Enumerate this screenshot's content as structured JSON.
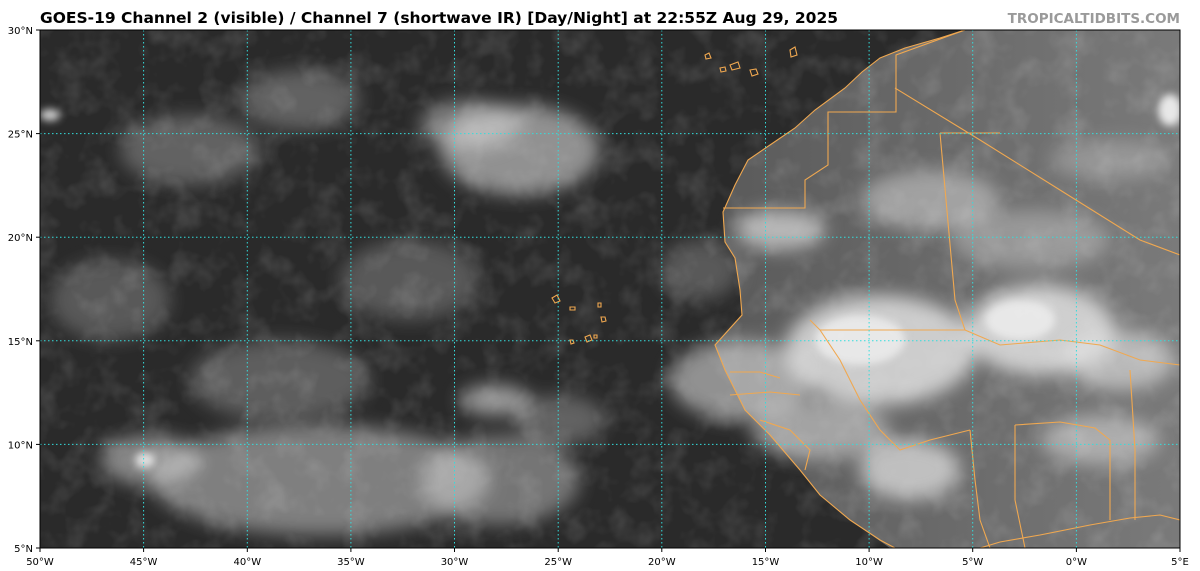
{
  "header": {
    "title": "GOES-19 Channel 2 (visible) / Channel 7 (shortwave IR) [Day/Night] at 22:55Z Aug 29, 2025",
    "credit": "TROPICALTIDBITS.COM"
  },
  "map": {
    "projection": "equirectangular",
    "lon_range": [
      -50,
      5
    ],
    "lat_range": [
      5,
      30
    ],
    "gridline_color": "#33dddd",
    "coastline_color": "#f0a850",
    "lat_ticks": [
      {
        "value": 30,
        "label": "30°N"
      },
      {
        "value": 25,
        "label": "25°N"
      },
      {
        "value": 20,
        "label": "20°N"
      },
      {
        "value": 15,
        "label": "15°N"
      },
      {
        "value": 10,
        "label": "10°N"
      },
      {
        "value": 5,
        "label": "5°N"
      }
    ],
    "lon_ticks": [
      {
        "value": -50,
        "label": "50°W"
      },
      {
        "value": -45,
        "label": "45°W"
      },
      {
        "value": -40,
        "label": "40°W"
      },
      {
        "value": -35,
        "label": "35°W"
      },
      {
        "value": -30,
        "label": "30°W"
      },
      {
        "value": -25,
        "label": "25°W"
      },
      {
        "value": -20,
        "label": "20°W"
      },
      {
        "value": -15,
        "label": "15°W"
      },
      {
        "value": -10,
        "label": "10°W"
      },
      {
        "value": -5,
        "label": "5°W"
      },
      {
        "value": 0,
        "label": "0°W"
      },
      {
        "value": 5,
        "label": "5°E"
      }
    ]
  }
}
